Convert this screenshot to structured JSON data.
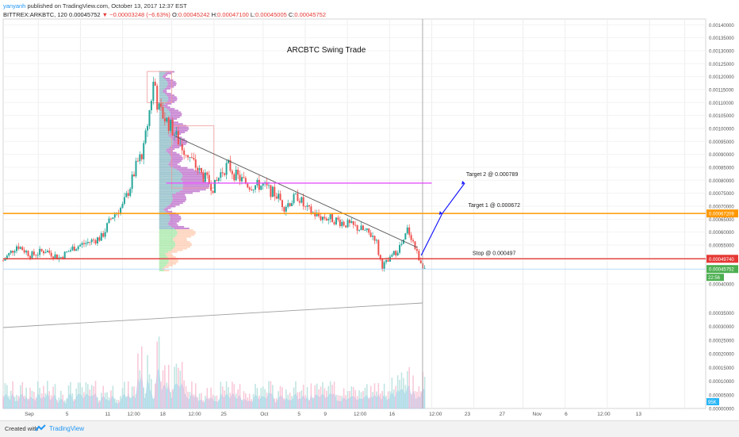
{
  "header": {
    "author": "yanyanh",
    "published": "published on TradingView.com, October 13, 2017 12:37 EST",
    "symbol": "BITTREX:ARKBTC, 120",
    "last": "0.00045752",
    "change": "−0.00003248 (−6.63%)",
    "o_label": "O:",
    "o_value": "0.00045242",
    "h_label": "H:",
    "h_value": "0.00047100",
    "l_label": "L:",
    "l_value": "0.00045005",
    "c_label": "C:",
    "c_value": "0.00045752"
  },
  "footer": {
    "created_with": "Created with",
    "brand": "TradingView"
  },
  "colors": {
    "up": "#26a69a",
    "down": "#ef5350",
    "target": "#ff9800",
    "stop": "#e53935",
    "poc": "#e040fb",
    "arrow": "#1a1aff",
    "trend": "#555555",
    "profile": "#9c27b0"
  },
  "chart_data": {
    "type": "candlestick",
    "title": "ARCBTC Swing Trade",
    "y_ticks": [
      "0.00140000",
      "0.00135000",
      "0.00130000",
      "0.00125000",
      "0.00120000",
      "0.00115000",
      "0.00110000",
      "0.00105000",
      "0.00100000",
      "0.00095000",
      "0.00090000",
      "0.00085000",
      "0.00080000",
      "0.00075000",
      "0.00070000",
      "0.00065000",
      "0.00060000",
      "0.00055000",
      "0.00050000",
      "0.00040000",
      "0.00035000",
      "0.00030000",
      "0.00025000",
      "0.00020000",
      "0.00015000",
      "0.00010000",
      "0.00005000",
      "0.00000000"
    ],
    "y_tick_values": [
      0.0014,
      0.00135,
      0.0013,
      0.00125,
      0.0012,
      0.00115,
      0.0011,
      0.00105,
      0.001,
      0.00095,
      0.0009,
      0.00085,
      0.0008,
      0.00075,
      0.0007,
      0.00065,
      0.0006,
      0.00055,
      0.0005,
      0.0004,
      0.00035,
      0.0003,
      0.00025,
      0.0002,
      0.00015,
      0.0001,
      5e-05,
      0.0
    ],
    "x_ticks": [
      "Sep",
      "5",
      "11",
      "12:00",
      "18",
      "12:00",
      "25",
      "Oct",
      "5",
      "9",
      "12:00",
      "16",
      "12:00",
      "23",
      "27",
      "Nov",
      "6",
      "12:00",
      "13"
    ],
    "price_path": [
      [
        0.0,
        0.00049
      ],
      [
        0.02,
        0.00055
      ],
      [
        0.04,
        0.00051
      ],
      [
        0.06,
        0.00053
      ],
      [
        0.08,
        0.0005
      ],
      [
        0.1,
        0.00054
      ],
      [
        0.12,
        0.00056
      ],
      [
        0.14,
        0.00058
      ],
      [
        0.155,
        0.00066
      ],
      [
        0.17,
        0.0007
      ],
      [
        0.18,
        0.00077
      ],
      [
        0.19,
        0.00086
      ],
      [
        0.2,
        0.00092
      ],
      [
        0.21,
        0.0011
      ],
      [
        0.215,
        0.0012
      ],
      [
        0.22,
        0.00108
      ],
      [
        0.23,
        0.00104
      ],
      [
        0.24,
        0.001
      ],
      [
        0.25,
        0.00095
      ],
      [
        0.26,
        0.00091
      ],
      [
        0.27,
        0.00087
      ],
      [
        0.28,
        0.00083
      ],
      [
        0.29,
        0.0008
      ],
      [
        0.3,
        0.00077
      ],
      [
        0.31,
        0.00083
      ],
      [
        0.32,
        0.00086
      ],
      [
        0.33,
        0.00082
      ],
      [
        0.34,
        0.0008
      ],
      [
        0.35,
        0.00078
      ],
      [
        0.37,
        0.00078
      ],
      [
        0.39,
        0.00074
      ],
      [
        0.4,
        0.0007
      ],
      [
        0.42,
        0.00074
      ],
      [
        0.43,
        0.00069
      ],
      [
        0.45,
        0.00066
      ],
      [
        0.47,
        0.00065
      ],
      [
        0.49,
        0.00063
      ],
      [
        0.51,
        0.00061
      ],
      [
        0.53,
        0.00058
      ],
      [
        0.535,
        0.00051
      ],
      [
        0.54,
        0.00047
      ],
      [
        0.55,
        0.00049
      ],
      [
        0.56,
        0.00053
      ],
      [
        0.57,
        0.00056
      ],
      [
        0.575,
        0.00061
      ],
      [
        0.58,
        0.00059
      ],
      [
        0.59,
        0.00051
      ],
      [
        0.6,
        0.00046
      ]
    ],
    "levels": [
      {
        "name": "target1",
        "label": "Target 1 @ 0.000672",
        "price": 0.000672,
        "badge": "0.00067209"
      },
      {
        "name": "stop",
        "label": "Stop @ 0.000497",
        "price": 0.000497,
        "badge": "0.00049740"
      },
      {
        "name": "target2",
        "label": "Target 2 @ 0.000789",
        "price": 0.000789
      }
    ],
    "poc_price": 0.000789,
    "current_price": {
      "value": "0.00045752",
      "price": 0.00045752,
      "countdown": "22:56"
    },
    "volume_badge": "95K"
  }
}
